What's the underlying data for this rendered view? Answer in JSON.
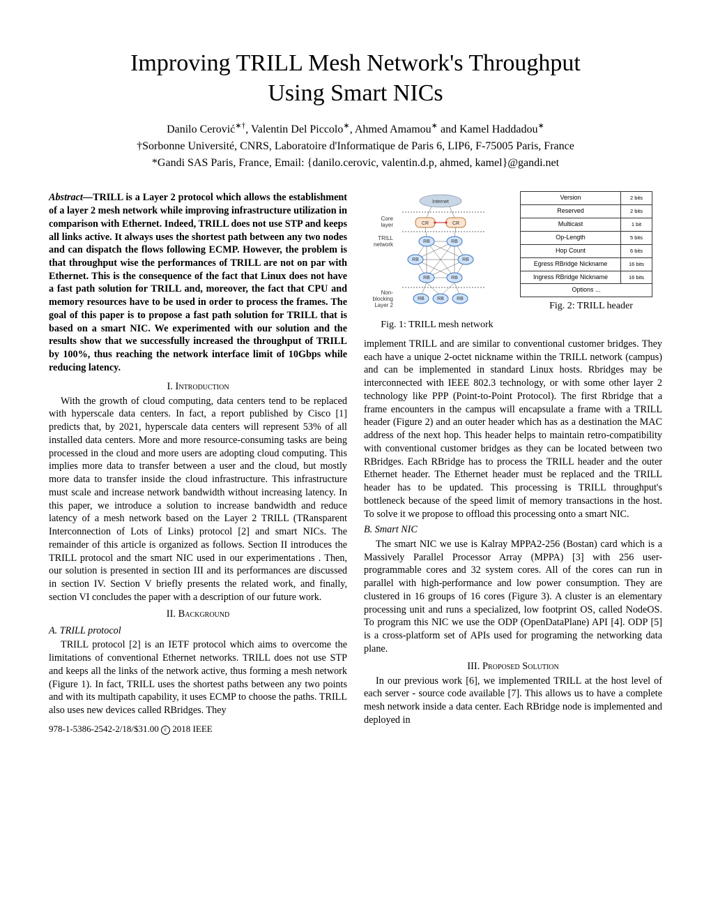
{
  "title_line1": "Improving TRILL Mesh Network's Throughput",
  "title_line2": "Using Smart NICs",
  "authors_line": "Danilo Cerović*†, Valentin Del Piccolo*, Ahmed Amamou* and Kamel Haddadou*",
  "affil1": "†Sorbonne Université, CNRS, Laboratoire d'Informatique de Paris 6, LIP6, F-75005 Paris, France",
  "affil2": "*Gandi SAS Paris, France, Email: {danilo.cerovic, valentin.d.p, ahmed, kamel}@gandi.net",
  "abstract_label": "Abstract—",
  "abstract_text": "TRILL is a Layer 2 protocol which allows the establishment of a layer 2 mesh network while improving infrastructure utilization in comparison with Ethernet. Indeed, TRILL does not use STP and keeps all links active. It always uses the shortest path between any two nodes and can dispatch the flows following ECMP. However, the problem is that throughput wise the performances of TRILL are not on par with Ethernet. This is the consequence of the fact that Linux does not have a fast path solution for TRILL and, moreover, the fact that CPU and memory resources have to be used in order to process the frames. The goal of this paper is to propose a fast path solution for TRILL that is based on a smart NIC. We experimented with our solution and the results show that we successfully increased the throughput of TRILL by 100%, thus reaching the network interface limit of 10Gbps while reducing latency.",
  "sec1_heading": "I.  Introduction",
  "intro_p1": "With the growth of cloud computing, data centers tend to be replaced with hyperscale data centers. In fact, a report published by Cisco [1] predicts that, by 2021, hyperscale data centers will represent 53% of all installed data centers. More and more resource-consuming tasks are being processed in the cloud and more users are adopting cloud computing. This implies more data to transfer between a user and the cloud, but mostly more data to transfer inside the cloud infrastructure. This infrastructure must scale and increase network bandwidth without increasing latency. In this paper, we introduce a solution to increase bandwidth and reduce latency of a mesh network based on the Layer 2 TRILL (TRansparent Interconnection of Lots of Links) protocol [2] and smart NICs. The remainder of this article is organized as follows. Section II introduces the TRILL protocol and the smart NIC used in our experimentations . Then, our solution is presented in section III and its performances are discussed in section IV. Section V briefly presents the related work, and finally, section VI concludes the paper with a description of our future work.",
  "sec2_heading": "II.  Background",
  "sec2a_heading": "A. TRILL protocol",
  "sec2a_p1": "TRILL protocol [2] is an IETF protocol which aims to overcome the limitations of conventional Ethernet networks. TRILL does not use STP and keeps all the links of the network active, thus forming a mesh network (Figure 1). In fact, TRILL uses the shortest paths between any two points and with its multipath capability, it uses ECMP to choose the paths. TRILL also uses new devices called RBridges. They",
  "footer": "978-1-5386-2542-2/18/$31.00 ",
  "footer_c": "c",
  "footer_tail": " 2018 IEEE",
  "fig1_caption": "Fig. 1: TRILL mesh network",
  "fig2_caption": "Fig. 2: TRILL header",
  "fig1_labels": {
    "internet": "Internet",
    "core": "Core",
    "layer": "layer",
    "cr": "CR",
    "trill": "TRILL",
    "network": "network",
    "rb": "RB",
    "nonblk1": "Non-",
    "nonblk2": "blocking",
    "nonblk3": "Layer 2"
  },
  "fig2_rows": [
    {
      "field": "Version",
      "bits": "2 bits"
    },
    {
      "field": "Reserved",
      "bits": "2 bits"
    },
    {
      "field": "Multicast",
      "bits": "1 bit"
    },
    {
      "field": "Op-Length",
      "bits": "5 bits"
    },
    {
      "field": "Hop Count",
      "bits": "6 bits"
    },
    {
      "field": "Egress RBridge Nickname",
      "bits": "16 bits"
    },
    {
      "field": "Ingress RBridge Nickname",
      "bits": "16 bits"
    },
    {
      "field": "Options ...",
      "bits": ""
    }
  ],
  "col2_p1": "implement TRILL and are similar to conventional customer bridges. They each have a unique 2-octet nickname within the TRILL network (campus) and can be implemented in standard Linux hosts. Rbridges may be interconnected with IEEE 802.3 technology, or with some other layer 2 technology like PPP (Point-to-Point Protocol). The first Rbridge that a frame encounters in the campus will encapsulate a frame with a TRILL header (Figure 2) and an outer header which has as a destination the MAC address of the next hop. This header helps to maintain retro-compatibility with conventional customer bridges as they can be located between two RBridges. Each RBridge has to process the TRILL header and the outer Ethernet header. The Ethernet header must be replaced and the TRILL header has to be updated. This processing is TRILL throughput's bottleneck because of the speed limit of memory transactions in the host. To solve it we propose to offload this processing onto a smart NIC.",
  "sec2b_heading": "B. Smart NIC",
  "sec2b_p1": "The smart NIC we use is Kalray MPPA2-256 (Bostan) card which is a Massively Parallel Processor Array (MPPA) [3] with 256 user-programmable cores and 32 system cores. All of the cores can run in parallel with high-performance and low power consumption. They are clustered in 16 groups of 16 cores (Figure 3). A cluster is an elementary processing unit and runs a specialized, low footprint OS, called NodeOS. To program this NIC we use the ODP (OpenDataPlane) API [4]. ODP [5] is a cross-platform set of APIs used for programing the networking data plane.",
  "sec3_heading": "III.  Proposed Solution",
  "sec3_p1": "In our previous work [6], we implemented TRILL at the host level of each server - source code available [7]. This allows us to have a complete mesh network inside a data center. Each RBridge node is implemented and deployed in",
  "colors": {
    "text": "#000000",
    "bg": "#ffffff",
    "cloud_fill": "#c9d6e6",
    "cr_fill": "#fde4cf",
    "rb_fill": "#cfe3fb",
    "line": "#555555"
  }
}
